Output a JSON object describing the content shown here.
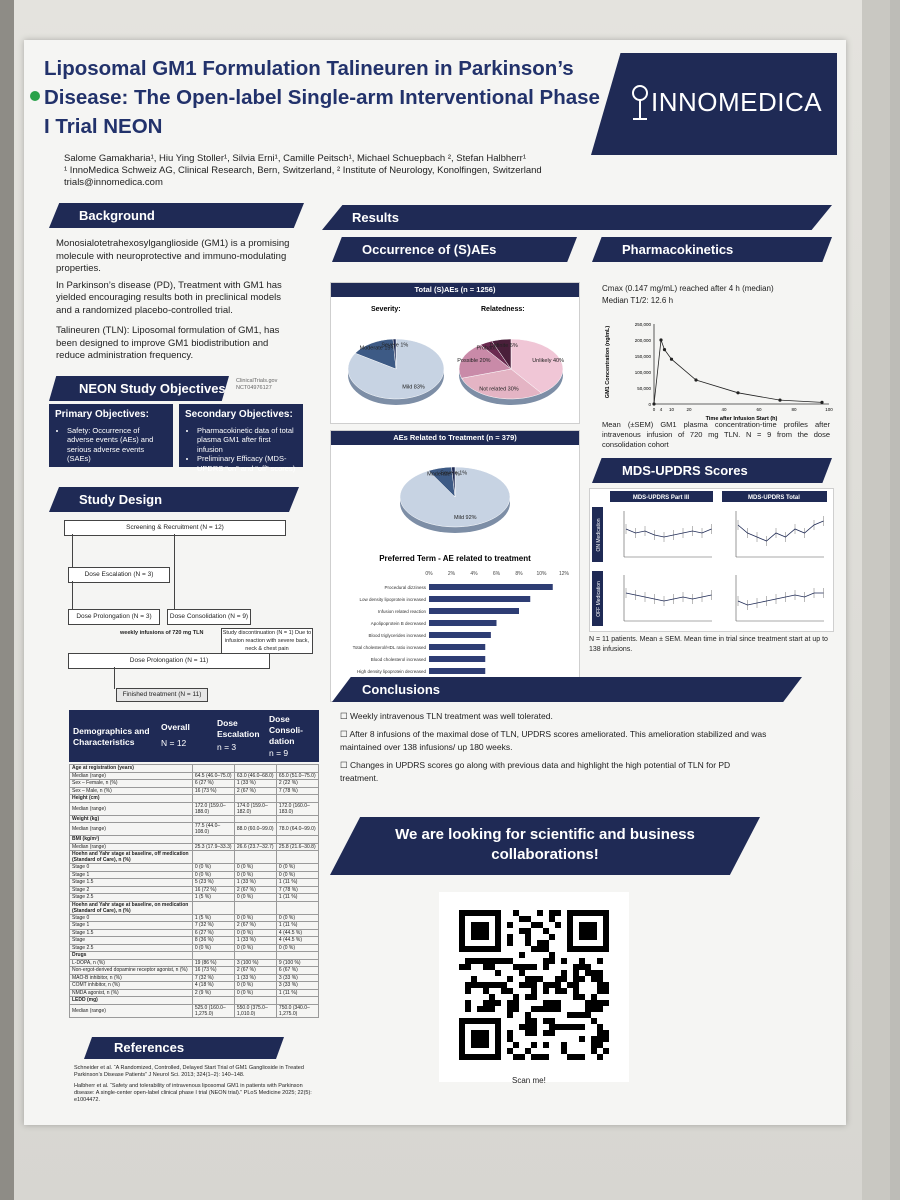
{
  "poster": {
    "title": "Liposomal GM1 Formulation Talineuren in Parkinson’s Disease: The Open-label Single-arm Interventional Phase I Trial NEON",
    "authors": "Salome Gamakharia¹, Hiu Ying Stoller¹, Silvia Erni¹, Camille Peitsch¹, Michael Schuepbach ², Stefan Halbherr¹",
    "affiliations": "¹ InnoMedica Schweiz AG, Clinical Research, Bern, Switzerland, ² Institute of Neurology, Konolfingen, Switzerland",
    "email": "trials@innomedica.com",
    "logo_text": "INNOMEDICA"
  },
  "background": {
    "heading": "Background",
    "bullets": [
      "Monosialotetrahexosylganglioside (GM1) is a promising molecule with neuroprotective and immuno-modulating properties.",
      "In Parkinson’s disease (PD), Treatment with GM1 has yielded encouraging results both in preclinical models and a randomized placebo-controlled trial."
    ],
    "tln": "Talineuren (TLN): Liposomal formulation of GM1, has been designed to improve GM1 biodistribution and reduce administration frequency."
  },
  "objectives": {
    "heading": "NEON Study Objectives",
    "registry": "ClinicalTrials.gov NCT04976127",
    "primary_title": "Primary Objectives:",
    "primary_items": [
      "Safety: Occurrence of adverse events (AEs) and serious adverse events (SAEs)"
    ],
    "secondary_title": "Secondary Objectives:",
    "secondary_items": [
      "Pharmacokinetic data of total plasma GM1 after first infusion",
      "Preliminary Efficacy (MDS-UPDRS “on” and “off” scores)"
    ]
  },
  "study_design": {
    "heading": "Study Design",
    "screening": "Screening & Recruitment (N = 12)",
    "escalation": "Dose Escalation (N = 3)",
    "prolongation": "Dose Prolongation (N = 3)",
    "consolidation": "Dose Consolidation (N = 9)",
    "weekly": "weekly infusions of 720 mg TLN",
    "discontinuation": "Study discontinuation (N = 1) Due to infusion reaction with severe back, neck & chest pain",
    "prolongation_all": "Dose Prolongation (N = 11)",
    "finished": "Finished treatment (N = 11)"
  },
  "demographics": {
    "h1": "Demographics and Characteristics",
    "h2": "Overall",
    "h2n": "N = 12",
    "h3": "Dose Escalation",
    "h3n": "n = 3",
    "h4": "Dose Consoli-dation",
    "h4n": "n = 9",
    "rows": [
      [
        "Age at registration (years)",
        "",
        "",
        ""
      ],
      [
        "Median (range)",
        "64.5 (46.0–75.0)",
        "63.0 (46.0–68.0)",
        "65.0 (51.0–75.0)"
      ],
      [
        "Sex – Female, n (%)",
        "6 (27 %)",
        "1 (33 %)",
        "2 (22 %)"
      ],
      [
        "Sex – Male, n (%)",
        "16 (73 %)",
        "2 (67 %)",
        "7 (78 %)"
      ],
      [
        "Height (cm)",
        "",
        "",
        ""
      ],
      [
        "Median (range)",
        "172.0 (159.0–188.0)",
        "174.0 (159.0–182.0)",
        "172.0 (160.0–183.0)"
      ],
      [
        "Weight (kg)",
        "",
        "",
        ""
      ],
      [
        "Median (range)",
        "77.5 (44.0–108.0)",
        "88.0 (60.0–99.0)",
        "78.0 (64.0–99.0)"
      ],
      [
        "BMI (kg/m²)",
        "",
        "",
        ""
      ],
      [
        "Median (range)",
        "25.3 (17.9–33.3)",
        "26.6 (23.7–32.7)",
        "25.8 (21.6–30.8)"
      ],
      [
        "Hoehn and Yahr stage at baseline, off medication (Standard of Care), n (%)",
        "",
        "",
        ""
      ],
      [
        "Stage 0",
        "0 (0 %)",
        "0 (0 %)",
        "0 (0 %)"
      ],
      [
        "Stage 1",
        "0 (0 %)",
        "0 (0 %)",
        "0 (0 %)"
      ],
      [
        "Stage 1.5",
        "5 (23 %)",
        "1 (33 %)",
        "1 (11 %)"
      ],
      [
        "Stage 2",
        "16 (72 %)",
        "2 (67 %)",
        "7 (78 %)"
      ],
      [
        "Stage 2.5",
        "1 (5 %)",
        "0 (0 %)",
        "1 (11 %)"
      ],
      [
        "Hoehn and Yahr stage at baseline, on medication (Standard of Care), n (%)",
        "",
        "",
        ""
      ],
      [
        "Stage 0",
        "1 (5 %)",
        "0 (0 %)",
        "0 (0 %)"
      ],
      [
        "Stage 1",
        "7 (32 %)",
        "2 (67 %)",
        "1 (11 %)"
      ],
      [
        "Stage 1.5",
        "6 (27 %)",
        "0 (0 %)",
        "4 (44.5 %)"
      ],
      [
        "Stage",
        "8 (36 %)",
        "1 (33 %)",
        "4 (44.5 %)"
      ],
      [
        "Stage 2.5",
        "0 (0 %)",
        "0 (0 %)",
        "0 (0 %)"
      ],
      [
        "Drugs",
        "",
        "",
        ""
      ],
      [
        "L-DOPA, n (%)",
        "19 (86 %)",
        "3 (100 %)",
        "9 (100 %)"
      ],
      [
        "Non-ergot-derived dopamine receptor agonist, n (%)",
        "16 (73 %)",
        "2 (67 %)",
        "6 (67 %)"
      ],
      [
        "MAO-B inhibitor, n (%)",
        "7 (32 %)",
        "1 (33 %)",
        "3 (33 %)"
      ],
      [
        "COMT inhibitor, n (%)",
        "4 (18 %)",
        "0 (0 %)",
        "3 (33 %)"
      ],
      [
        "NMDA agonist, n (%)",
        "2 (9 %)",
        "0 (0 %)",
        "1 (11 %)"
      ],
      [
        "LEDD (mg)",
        "",
        "",
        ""
      ],
      [
        "Median (range)",
        "525.0 (160.0–1,275.0)",
        "550.0 (375.0–1,010.0)",
        "750.0 (340.0–1,275.0)"
      ]
    ]
  },
  "references": {
    "heading": "References",
    "items": [
      "Schneider et al. “A Randomized, Controlled, Delayed Start Trial of GM1 Ganglioside in Treated Parkinson’s Disease Patients” J Neurol Sci. 2013; 324(1–2): 140–148.",
      "Halbherr et al. “Safety and tolerability of intravenous liposomal GM1 in patients with Parkinson disease: A single-center open-label clinical phase I trial (NEON trial).” PLoS Medicine 2025; 22(5): e1004472."
    ]
  },
  "results": {
    "heading": "Results",
    "saes_heading": "Occurrence of (S)AEs",
    "pk_heading": "Pharmacokinetics",
    "mds_heading": "MDS-UPDRS Scores",
    "conclusions_heading": "Conclusions",
    "total_aes_title": "Total (S)AEs (n = 1256)",
    "severity_title": "Severity:",
    "relatedness_title": "Relatedness:",
    "related_title": "AEs Related to Treatment (n = 379)",
    "preferred_title": "Preferred Term - AE related to treatment",
    "pk_line1": "Cmax (0.147 mg/mL) reached after 4 h (median)",
    "pk_line2": "Median T1/2: 12.6 h",
    "pk_caption": "Mean (±SEM) GM1 plasma concentration-time profiles after intravenous infusion of 720 mg TLN. N = 9 from the dose consolidation cohort",
    "mds_panel1": "MDS-UPDRS Part III",
    "mds_panel2": "MDS-UPDRS Total",
    "mds_row1": "ON Medication",
    "mds_row2": "OFF Medication",
    "mds_caption": "N = 11 patients. Mean ± SEM. Mean time in trial since treatment start at up to 138 infusions."
  },
  "conclusions": [
    "Weekly intravenous TLN treatment was well tolerated.",
    "After 8 infusions of the maximal dose of TLN, UPDRS scores ameliorated. This amelioration stabilized and was maintained over 138 infusions/ up 180 weeks.",
    "Changes in UPDRS scores go along with previous data and highlight the high potential of TLN for PD treatment."
  ],
  "collab": {
    "text": "We are looking for scientific and business collaborations!",
    "scan": "Scan me!"
  },
  "chart_data": [
    {
      "type": "pie",
      "title": "Severity:",
      "categories": [
        "Mild",
        "Moderate",
        "Severe"
      ],
      "values": [
        83,
        15,
        1
      ],
      "labels": [
        "Mild 83%",
        "Moderate 15%",
        "Severe 1%"
      ]
    },
    {
      "type": "pie",
      "title": "Relatedness:",
      "categories": [
        "Unlikely",
        "Not related",
        "Possible",
        "Probable",
        "Definite"
      ],
      "values": [
        40,
        30,
        20,
        4,
        6
      ],
      "labels": [
        "Unlikely 40%",
        "Not related 30%",
        "Possible 20%",
        "Probable 4%",
        "Definite 6%"
      ]
    },
    {
      "type": "pie",
      "title": "AEs Related to Treatment (n = 379)",
      "categories": [
        "Mild",
        "Moderate",
        "Severe"
      ],
      "values": [
        92,
        7,
        1
      ],
      "labels": [
        "Mild 92%",
        "Moderate 7%",
        "Severe 1%"
      ]
    },
    {
      "type": "bar",
      "title": "Preferred Term - AE related to treatment",
      "xlim": [
        0,
        12
      ],
      "xticks": [
        "0%",
        "2%",
        "4%",
        "6%",
        "8%",
        "10%",
        "12%"
      ],
      "categories": [
        "Procedural dizziness",
        "Low density lipoprotein increased",
        "Infusion related reaction",
        "Apolipoprotein B decreased",
        "Blood triglycerides increased",
        "Total cholesterol/HDL ratio increased",
        "Blood cholesterol increased",
        "High density lipoprotein decreased"
      ],
      "values": [
        11,
        9,
        8,
        6,
        5.5,
        5,
        5,
        5
      ]
    },
    {
      "type": "line",
      "title": "",
      "xlabel": "Time after Infusion Start (h)",
      "ylabel": "GM1 Concentration (ng/mL)",
      "xlim": [
        0,
        100
      ],
      "ylim": [
        0,
        250000
      ],
      "xticks": [
        "0",
        "4",
        "10",
        "20",
        "40",
        "60",
        "80",
        "100"
      ],
      "yticks": [
        "0",
        "50,000",
        "100,000",
        "150,000",
        "200,000",
        "250,000"
      ],
      "x": [
        0,
        4,
        6,
        10,
        24,
        48,
        72,
        96
      ],
      "y": [
        0,
        200000,
        170000,
        140000,
        75000,
        35000,
        12000,
        5000
      ]
    }
  ]
}
